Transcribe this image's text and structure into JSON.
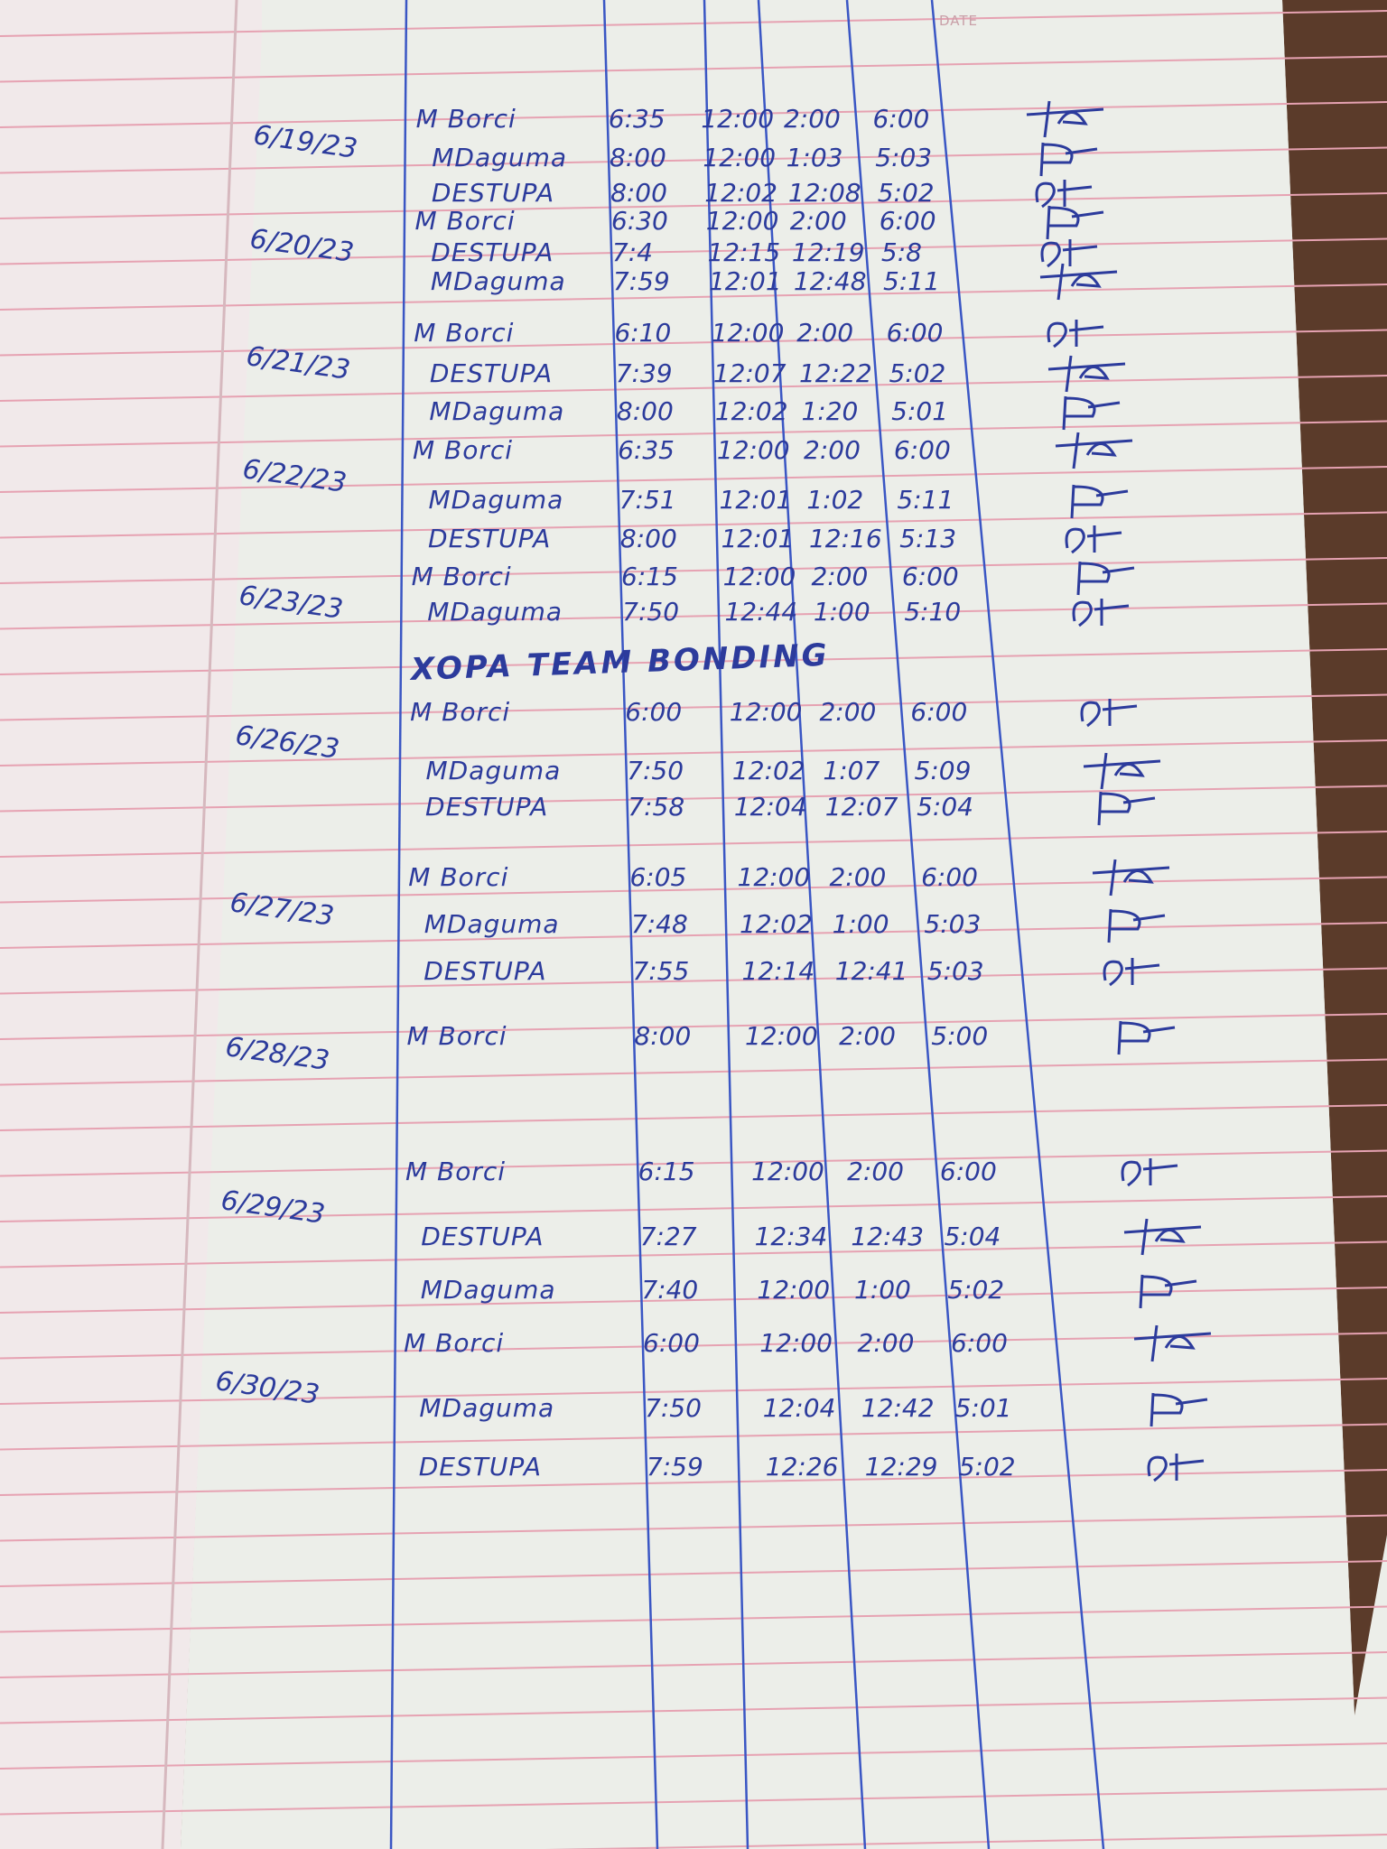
{
  "header": {
    "date_label": "DATE"
  },
  "colors": {
    "ink": "#2c3b9c",
    "rule": "#e6a2b2",
    "column_rule": "#3a56c4",
    "paper": "#eceee9",
    "desk": "#5b3b2a"
  },
  "banner": "XOPA TEAM BONDING",
  "days": [
    {
      "date": "6/19/23",
      "entries": [
        {
          "name": "M Borci",
          "in": "6:35",
          "lunch_out": "12:00",
          "lunch_in": "2:00",
          "out": "6:00"
        },
        {
          "name": "MDaguma",
          "in": "8:00",
          "lunch_out": "12:00",
          "lunch_in": "1:03",
          "out": "5:03"
        },
        {
          "name": "DESTUPA",
          "in": "8:00",
          "lunch_out": "12:02",
          "lunch_in": "12:08",
          "out": "5:02"
        }
      ]
    },
    {
      "date": "6/20/23",
      "entries": [
        {
          "name": "M Borci",
          "in": "6:30",
          "lunch_out": "12:00",
          "lunch_in": "2:00",
          "out": "6:00"
        },
        {
          "name": "DESTUPA",
          "in": "7:4",
          "lunch_out": "12:15",
          "lunch_in": "12:19",
          "out": "5:8"
        },
        {
          "name": "MDaguma",
          "in": "7:59",
          "lunch_out": "12:01",
          "lunch_in": "12:48",
          "out": "5:11"
        }
      ]
    },
    {
      "date": "6/21/23",
      "entries": [
        {
          "name": "M Borci",
          "in": "6:10",
          "lunch_out": "12:00",
          "lunch_in": "2:00",
          "out": "6:00"
        },
        {
          "name": "DESTUPA",
          "in": "7:39",
          "lunch_out": "12:07",
          "lunch_in": "12:22",
          "out": "5:02"
        },
        {
          "name": "MDaguma",
          "in": "8:00",
          "lunch_out": "12:02",
          "lunch_in": "1:20",
          "out": "5:01"
        }
      ]
    },
    {
      "date": "6/22/23",
      "entries": [
        {
          "name": "M Borci",
          "in": "6:35",
          "lunch_out": "12:00",
          "lunch_in": "2:00",
          "out": "6:00"
        },
        {
          "name": "MDaguma",
          "in": "7:51",
          "lunch_out": "12:01",
          "lunch_in": "1:02",
          "out": "5:11"
        },
        {
          "name": "DESTUPA",
          "in": "8:00",
          "lunch_out": "12:01",
          "lunch_in": "12:16",
          "out": "5:13"
        }
      ]
    },
    {
      "date": "6/23/23",
      "entries": [
        {
          "name": "M Borci",
          "in": "6:15",
          "lunch_out": "12:00",
          "lunch_in": "2:00",
          "out": "6:00"
        },
        {
          "name": "MDaguma",
          "in": "7:50",
          "lunch_out": "12:44",
          "lunch_in": "1:00",
          "out": "5:10"
        }
      ]
    },
    {
      "date": "6/26/23",
      "entries": [
        {
          "name": "M Borci",
          "in": "6:00",
          "lunch_out": "12:00",
          "lunch_in": "2:00",
          "out": "6:00"
        },
        {
          "name": "MDaguma",
          "in": "7:50",
          "lunch_out": "12:02",
          "lunch_in": "1:07",
          "out": "5:09"
        },
        {
          "name": "DESTUPA",
          "in": "7:58",
          "lunch_out": "12:04",
          "lunch_in": "12:07",
          "out": "5:04"
        }
      ]
    },
    {
      "date": "6/27/23",
      "entries": [
        {
          "name": "M Borci",
          "in": "6:05",
          "lunch_out": "12:00",
          "lunch_in": "2:00",
          "out": "6:00"
        },
        {
          "name": "MDaguma",
          "in": "7:48",
          "lunch_out": "12:02",
          "lunch_in": "1:00",
          "out": "5:03"
        },
        {
          "name": "DESTUPA",
          "in": "7:55",
          "lunch_out": "12:14",
          "lunch_in": "12:41",
          "out": "5:03"
        }
      ]
    },
    {
      "date": "6/28/23",
      "entries": [
        {
          "name": "M Borci",
          "in": "8:00",
          "lunch_out": "12:00",
          "lunch_in": "2:00",
          "out": "5:00"
        }
      ]
    },
    {
      "date": "6/29/23",
      "entries": [
        {
          "name": "M Borci",
          "in": "6:15",
          "lunch_out": "12:00",
          "lunch_in": "2:00",
          "out": "6:00"
        },
        {
          "name": "DESTUPA",
          "in": "7:27",
          "lunch_out": "12:34",
          "lunch_in": "12:43",
          "out": "5:04"
        },
        {
          "name": "MDaguma",
          "in": "7:40",
          "lunch_out": "12:00",
          "lunch_in": "1:00",
          "out": "5:02"
        }
      ]
    },
    {
      "date": "6/30/23",
      "entries": [
        {
          "name": "M Borci",
          "in": "6:00",
          "lunch_out": "12:00",
          "lunch_in": "2:00",
          "out": "6:00"
        },
        {
          "name": "MDaguma",
          "in": "7:50",
          "lunch_out": "12:04",
          "lunch_in": "12:42",
          "out": "5:01"
        },
        {
          "name": "DESTUPA",
          "in": "7:59",
          "lunch_out": "12:26",
          "lunch_in": "12:29",
          "out": "5:02"
        }
      ]
    }
  ]
}
